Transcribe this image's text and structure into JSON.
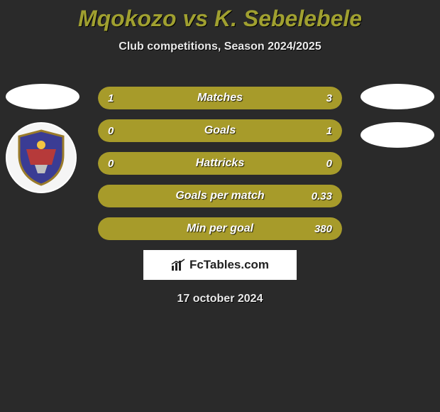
{
  "title": "Mqokozo vs K. Sebelebele",
  "subtitle": "Club competitions, Season 2024/2025",
  "colors": {
    "accent": "#a79b2a",
    "title": "#a0a030",
    "bg": "#2a2a2a",
    "bar_bg": "#3a3a3a"
  },
  "avatars": {
    "left_ovals": 1,
    "right_ovals": 2,
    "show_left_badge": true
  },
  "stats": [
    {
      "label": "Matches",
      "left_val": "1",
      "right_val": "3",
      "left_pct": 25,
      "right_pct": 75
    },
    {
      "label": "Goals",
      "left_val": "0",
      "right_val": "1",
      "left_pct": 10,
      "right_pct": 90
    },
    {
      "label": "Hattricks",
      "left_val": "0",
      "right_val": "0",
      "left_pct": 50,
      "right_pct": 50
    },
    {
      "label": "Goals per match",
      "left_val": "",
      "right_val": "0.33",
      "left_pct": 0,
      "right_pct": 100
    },
    {
      "label": "Min per goal",
      "left_val": "",
      "right_val": "380",
      "left_pct": 0,
      "right_pct": 100
    }
  ],
  "brand": {
    "name": "FcTables.com"
  },
  "date": "17 october 2024"
}
